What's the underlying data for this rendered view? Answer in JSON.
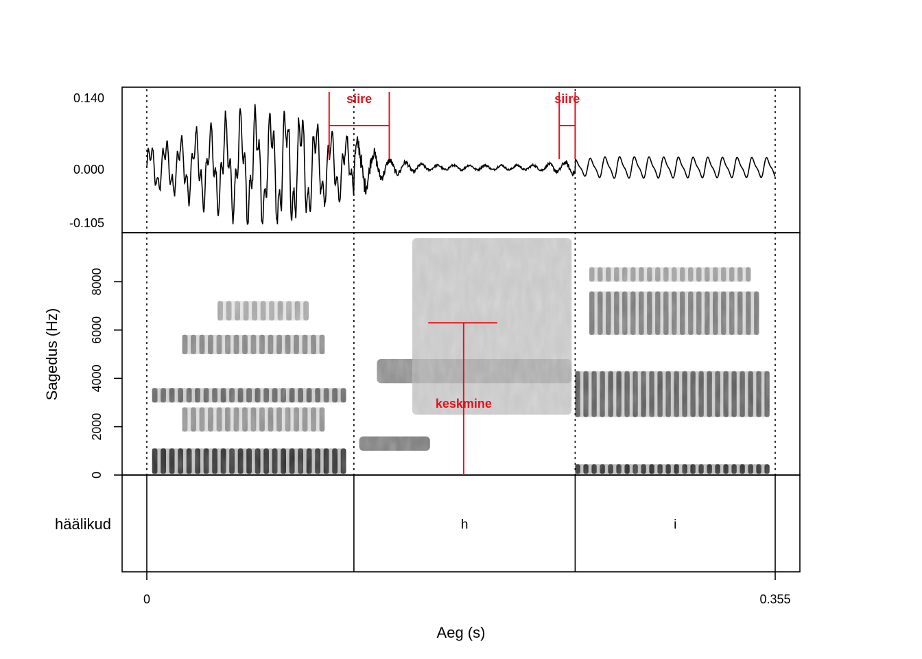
{
  "chart_data": {
    "type": "spectrogram",
    "x_axis": {
      "label": "Aeg (s)",
      "range": [
        0,
        0.355
      ],
      "tick_labels": [
        "0",
        "0.355"
      ]
    },
    "waveform": {
      "tick_labels": [
        "0.140",
        "0.000",
        "-0.105"
      ],
      "range": [
        -0.105,
        0.14
      ],
      "envelope": [
        {
          "t": 0.0,
          "amp": 0.05
        },
        {
          "t": 0.02,
          "amp": 0.07
        },
        {
          "t": 0.05,
          "amp": 0.12
        },
        {
          "t": 0.075,
          "amp": 0.14
        },
        {
          "t": 0.09,
          "amp": 0.13
        },
        {
          "t": 0.1,
          "amp": 0.09
        },
        {
          "t": 0.12,
          "amp": 0.06
        },
        {
          "t": 0.135,
          "amp": 0.02
        },
        {
          "t": 0.16,
          "amp": 0.006
        },
        {
          "t": 0.22,
          "amp": 0.006
        },
        {
          "t": 0.24,
          "amp": 0.015
        },
        {
          "t": 0.26,
          "amp": 0.022
        },
        {
          "t": 0.355,
          "amp": 0.02
        }
      ]
    },
    "spectrogram": {
      "ylabel": "Sagedus (Hz)",
      "ylim": [
        0,
        10000
      ],
      "y_ticks": [
        0,
        2000,
        4000,
        6000,
        8000
      ],
      "y_tick_labels": [
        "0",
        "2000",
        "4000",
        "6000",
        "8000"
      ],
      "bands": [
        {
          "segment": 0,
          "t0": 0.003,
          "t1": 0.11,
          "f_low": 50,
          "f_high": 1100,
          "darkness": 0.92,
          "striated": true
        },
        {
          "segment": 0,
          "t0": 0.003,
          "t1": 0.11,
          "f_low": 3000,
          "f_high": 3600,
          "darkness": 0.7,
          "striated": true
        },
        {
          "segment": 0,
          "t0": 0.02,
          "t1": 0.1,
          "f_low": 1800,
          "f_high": 2800,
          "darkness": 0.5,
          "striated": true
        },
        {
          "segment": 0,
          "t0": 0.02,
          "t1": 0.1,
          "f_low": 5000,
          "f_high": 5800,
          "darkness": 0.55,
          "striated": true
        },
        {
          "segment": 0,
          "t0": 0.04,
          "t1": 0.09,
          "f_low": 6400,
          "f_high": 7200,
          "darkness": 0.4,
          "striated": true
        },
        {
          "segment": 1,
          "t0": 0.12,
          "t1": 0.16,
          "f_low": 1000,
          "f_high": 1600,
          "darkness": 0.7,
          "striated": false
        },
        {
          "segment": 1,
          "t0": 0.13,
          "t1": 0.24,
          "f_low": 3800,
          "f_high": 4800,
          "darkness": 0.6,
          "striated": false
        },
        {
          "segment": 1,
          "t0": 0.15,
          "t1": 0.24,
          "f_low": 2500,
          "f_high": 9800,
          "darkness": 0.3,
          "striated": false
        },
        {
          "segment": 2,
          "t0": 0.242,
          "t1": 0.35,
          "f_low": 50,
          "f_high": 450,
          "darkness": 0.92,
          "striated": true
        },
        {
          "segment": 2,
          "t0": 0.242,
          "t1": 0.35,
          "f_low": 2400,
          "f_high": 4300,
          "darkness": 0.72,
          "striated": true
        },
        {
          "segment": 2,
          "t0": 0.25,
          "t1": 0.345,
          "f_low": 5800,
          "f_high": 7600,
          "darkness": 0.6,
          "striated": true
        },
        {
          "segment": 2,
          "t0": 0.25,
          "t1": 0.34,
          "f_low": 8000,
          "f_high": 8600,
          "darkness": 0.45,
          "striated": true
        }
      ]
    },
    "annotations": [
      {
        "type": "bracket",
        "label": "siire",
        "t0": 0.103,
        "t1": 0.137,
        "color": "#e8101b"
      },
      {
        "type": "bracket",
        "label": "siire",
        "t0": 0.233,
        "t1": 0.242,
        "color": "#e8101b"
      },
      {
        "type": "measure",
        "label": "keskmine",
        "t": 0.179,
        "freq": 6300,
        "t0": 0.159,
        "t1": 0.198,
        "color": "#e8101b"
      }
    ],
    "tier": {
      "label": "häälikud",
      "boundaries": [
        0,
        0.117,
        0.242,
        0.355
      ],
      "segments": [
        {
          "t0": 0,
          "t1": 0.117,
          "label": ""
        },
        {
          "t0": 0.117,
          "t1": 0.242,
          "label": "h"
        },
        {
          "t0": 0.242,
          "t1": 0.355,
          "label": "i"
        }
      ]
    },
    "boundary_style": "dotted"
  },
  "colors": {
    "annotation": "#e8101b",
    "waveform": "#000000",
    "frame": "#000000"
  }
}
